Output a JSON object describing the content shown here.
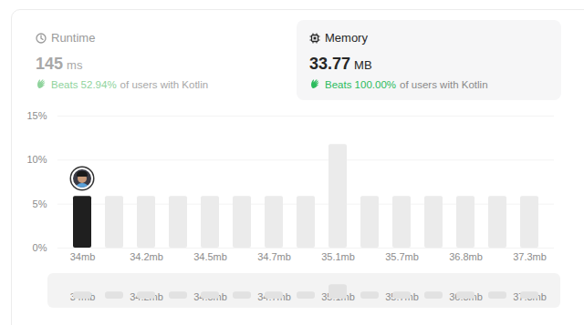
{
  "cards": [
    {
      "label": "Runtime",
      "value": "145",
      "unit": "ms",
      "beats": "Beats 52.94%",
      "rest": "of users with Kotlin"
    },
    {
      "label": "Memory",
      "value": "33.77",
      "unit": "MB",
      "beats": "Beats 100.00%",
      "rest": "of users with Kotlin"
    }
  ],
  "chart_data": {
    "type": "bar",
    "categories": [
      "34mb",
      null,
      "34.2mb",
      null,
      "34.5mb",
      null,
      "34.7mb",
      null,
      "35.1mb",
      null,
      "35.7mb",
      null,
      "36.8mb",
      null,
      "37.3mb"
    ],
    "values": [
      5.88,
      5.88,
      5.88,
      5.88,
      5.88,
      5.88,
      5.88,
      5.88,
      11.76,
      5.88,
      5.88,
      5.88,
      5.88,
      5.88,
      5.88
    ],
    "colors": [
      "#1f1f1f",
      "#ebebeb",
      "#ebebeb",
      "#ebebeb",
      "#ebebeb",
      "#ebebeb",
      "#ebebeb",
      "#ebebeb",
      "#ebebeb",
      "#ebebeb",
      "#ebebeb",
      "#ebebeb",
      "#ebebeb",
      "#ebebeb",
      "#ebebeb"
    ],
    "ylim": [
      0,
      15
    ],
    "yticks": [
      {
        "value": 0,
        "label": "0%"
      },
      {
        "value": 5,
        "label": "5%"
      },
      {
        "value": 10,
        "label": "10%"
      },
      {
        "value": 15,
        "label": "15%"
      }
    ],
    "grid": true
  }
}
